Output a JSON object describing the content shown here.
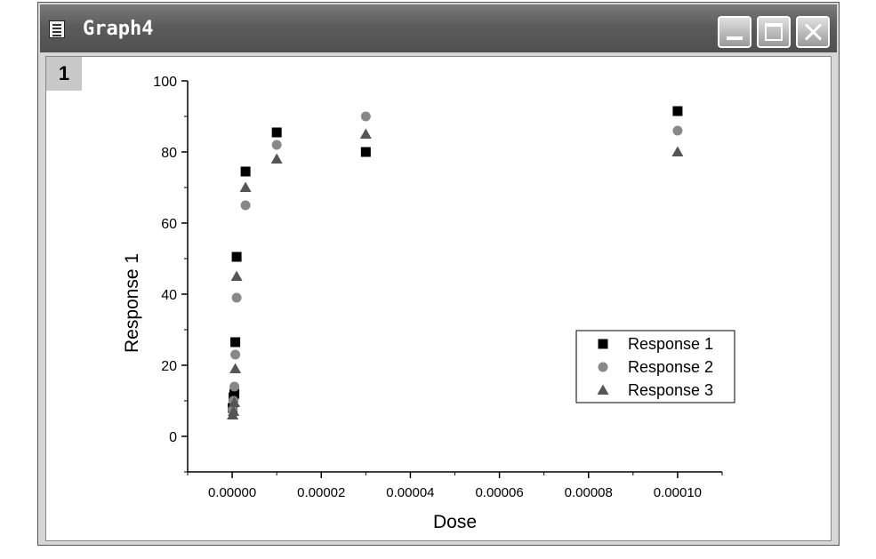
{
  "window": {
    "title": "Graph4",
    "layer_label": "1",
    "controls": [
      "minimize-icon",
      "maximize-icon",
      "close-icon"
    ]
  },
  "chart_data": {
    "type": "scatter",
    "title": "",
    "xlabel": "Dose",
    "ylabel": "Response 1",
    "xlim": [
      -1e-05,
      0.00011
    ],
    "ylim": [
      -10,
      100
    ],
    "xticks": [
      0,
      2e-05,
      4e-05,
      6e-05,
      8e-05,
      0.0001
    ],
    "xtick_labels": [
      "0.00000",
      "0.00002",
      "0.00004",
      "0.00006",
      "0.00008",
      "0.00010"
    ],
    "yticks": [
      0,
      20,
      40,
      60,
      80,
      100
    ],
    "ytick_labels": [
      "0",
      "20",
      "40",
      "60",
      "80",
      "100"
    ],
    "legend_position": "right",
    "series": [
      {
        "name": "Response 1",
        "marker": "square",
        "color": "#000000",
        "x": [
          1e-07,
          3e-07,
          5e-07,
          7e-07,
          1e-06,
          3e-06,
          1e-05,
          3e-05,
          0.0001
        ],
        "y": [
          8,
          11,
          12,
          26.5,
          50.5,
          74.5,
          85.5,
          80,
          91.5
        ]
      },
      {
        "name": "Response 2",
        "marker": "circle",
        "color": "#888888",
        "x": [
          1e-07,
          3e-07,
          5e-07,
          7e-07,
          1e-06,
          3e-06,
          1e-05,
          3e-05,
          0.0001
        ],
        "y": [
          7.5,
          10,
          14,
          23,
          39,
          65,
          82,
          90,
          86
        ]
      },
      {
        "name": "Response 3",
        "marker": "triangle",
        "color": "#555555",
        "x": [
          1e-07,
          3e-07,
          5e-07,
          7e-07,
          1e-06,
          3e-06,
          1e-05,
          3e-05,
          0.0001
        ],
        "y": [
          6,
          7,
          9.5,
          19,
          45,
          70,
          78,
          85,
          80
        ]
      }
    ]
  }
}
